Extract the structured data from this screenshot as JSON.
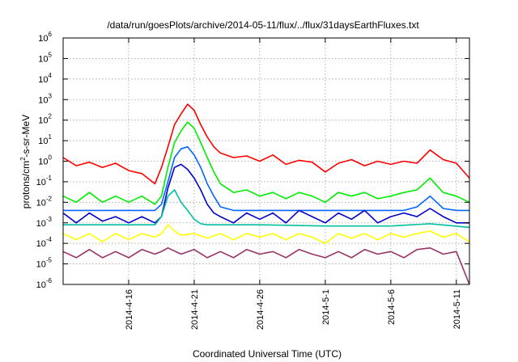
{
  "chart_data": {
    "type": "line",
    "title": "/data/run/goesPlots/archive/2014-05-11/flux/../flux/31daysEarthFluxes.txt",
    "xlabel": "Coordinated Universal Time (UTC)",
    "ylabel": {
      "base": "protons/cm",
      "sup": "2",
      "rest": "-s-sr-MeV"
    },
    "x_range": [
      "2014-04-11",
      "2014-05-12"
    ],
    "x_ticks": [
      "2014-4-16",
      "2014-4-21",
      "2014-4-26",
      "2014-5-1",
      "2014-5-6",
      "2014-5-11"
    ],
    "y_scale": "log",
    "ylim": [
      1e-06,
      1000000.0
    ],
    "y_ticks": [
      {
        "base": "10",
        "exp": "-6"
      },
      {
        "base": "10",
        "exp": "-5"
      },
      {
        "base": "10",
        "exp": "-4"
      },
      {
        "base": "10",
        "exp": "-3"
      },
      {
        "base": "10",
        "exp": "-2"
      },
      {
        "base": "10",
        "exp": "-1"
      },
      {
        "base": "10",
        "exp": "0"
      },
      {
        "base": "10",
        "exp": "1"
      },
      {
        "base": "10",
        "exp": "2"
      },
      {
        "base": "10",
        "exp": "3"
      },
      {
        "base": "10",
        "exp": "4"
      },
      {
        "base": "10",
        "exp": "5"
      },
      {
        "base": "10",
        "exp": "6"
      }
    ],
    "grid": true,
    "legend": "none",
    "series": [
      {
        "color": "#ff0000",
        "points": [
          [
            "2014-04-11",
            1.5
          ],
          [
            "2014-04-12",
            0.6
          ],
          [
            "2014-04-13",
            0.9
          ],
          [
            "2014-04-14",
            0.5
          ],
          [
            "2014-04-15",
            0.8
          ],
          [
            "2014-04-16",
            0.35
          ],
          [
            "2014-04-17",
            0.25
          ],
          [
            "2014-04-18",
            0.08
          ],
          [
            "2014-04-18T12:00",
            0.5
          ],
          [
            "2014-04-19",
            5
          ],
          [
            "2014-04-19T12:00",
            60
          ],
          [
            "2014-04-20",
            200
          ],
          [
            "2014-04-20T12:00",
            600
          ],
          [
            "2014-04-21",
            300
          ],
          [
            "2014-04-21T12:00",
            60
          ],
          [
            "2014-04-22",
            15
          ],
          [
            "2014-04-22T12:00",
            5
          ],
          [
            "2014-04-23",
            2.5
          ],
          [
            "2014-04-24",
            1.5
          ],
          [
            "2014-04-25",
            1.8
          ],
          [
            "2014-04-26",
            1.0
          ],
          [
            "2014-04-27",
            2.0
          ],
          [
            "2014-04-28",
            0.7
          ],
          [
            "2014-04-29",
            1.1
          ],
          [
            "2014-04-30",
            0.9
          ],
          [
            "2014-05-01",
            0.3
          ],
          [
            "2014-05-02",
            0.8
          ],
          [
            "2014-05-03",
            1.2
          ],
          [
            "2014-05-04",
            0.6
          ],
          [
            "2014-05-05",
            1.0
          ],
          [
            "2014-05-06",
            0.7
          ],
          [
            "2014-05-07",
            1.0
          ],
          [
            "2014-05-08",
            0.8
          ],
          [
            "2014-05-09",
            3.5
          ],
          [
            "2014-05-10",
            1.2
          ],
          [
            "2014-05-11",
            0.8
          ],
          [
            "2014-05-12",
            0.15
          ]
        ]
      },
      {
        "color": "#00ee00",
        "points": [
          [
            "2014-04-11",
            0.02
          ],
          [
            "2014-04-12",
            0.01
          ],
          [
            "2014-04-13",
            0.03
          ],
          [
            "2014-04-14",
            0.01
          ],
          [
            "2014-04-15",
            0.02
          ],
          [
            "2014-04-16",
            0.01
          ],
          [
            "2014-04-17",
            0.02
          ],
          [
            "2014-04-18",
            0.008
          ],
          [
            "2014-04-18T12:00",
            0.02
          ],
          [
            "2014-04-19",
            0.5
          ],
          [
            "2014-04-19T12:00",
            8
          ],
          [
            "2014-04-20",
            30
          ],
          [
            "2014-04-20T12:00",
            80
          ],
          [
            "2014-04-21",
            40
          ],
          [
            "2014-04-21T12:00",
            8
          ],
          [
            "2014-04-22",
            1.5
          ],
          [
            "2014-04-22T12:00",
            0.3
          ],
          [
            "2014-04-23",
            0.08
          ],
          [
            "2014-04-24",
            0.03
          ],
          [
            "2014-04-25",
            0.04
          ],
          [
            "2014-04-26",
            0.02
          ],
          [
            "2014-04-27",
            0.03
          ],
          [
            "2014-04-28",
            0.015
          ],
          [
            "2014-04-29",
            0.03
          ],
          [
            "2014-04-30",
            0.02
          ],
          [
            "2014-05-01",
            0.01
          ],
          [
            "2014-05-02",
            0.03
          ],
          [
            "2014-05-03",
            0.02
          ],
          [
            "2014-05-04",
            0.03
          ],
          [
            "2014-05-05",
            0.015
          ],
          [
            "2014-05-06",
            0.02
          ],
          [
            "2014-05-07",
            0.03
          ],
          [
            "2014-05-08",
            0.04
          ],
          [
            "2014-05-09",
            0.15
          ],
          [
            "2014-05-10",
            0.03
          ],
          [
            "2014-05-11",
            0.02
          ],
          [
            "2014-05-12",
            0.01
          ]
        ]
      },
      {
        "color": "#0066ff",
        "points": [
          [
            "2014-04-11",
            0.004
          ],
          [
            "2014-04-14",
            0.004
          ],
          [
            "2014-04-16",
            0.004
          ],
          [
            "2014-04-18",
            0.004
          ],
          [
            "2014-04-18T12:00",
            0.008
          ],
          [
            "2014-04-19",
            0.1
          ],
          [
            "2014-04-19T12:00",
            1.5
          ],
          [
            "2014-04-20",
            4
          ],
          [
            "2014-04-20T12:00",
            5
          ],
          [
            "2014-04-21",
            2
          ],
          [
            "2014-04-21T12:00",
            0.5
          ],
          [
            "2014-04-22",
            0.08
          ],
          [
            "2014-04-22T12:00",
            0.02
          ],
          [
            "2014-04-23",
            0.006
          ],
          [
            "2014-04-24",
            0.004
          ],
          [
            "2014-04-28",
            0.004
          ],
          [
            "2014-05-01",
            0.004
          ],
          [
            "2014-05-04",
            0.004
          ],
          [
            "2014-05-07",
            0.004
          ],
          [
            "2014-05-08",
            0.006
          ],
          [
            "2014-05-09",
            0.02
          ],
          [
            "2014-05-10",
            0.005
          ],
          [
            "2014-05-11",
            0.004
          ],
          [
            "2014-05-12",
            0.004
          ]
        ]
      },
      {
        "color": "#0000cc",
        "points": [
          [
            "2014-04-11",
            0.003
          ],
          [
            "2014-04-12",
            0.001
          ],
          [
            "2014-04-13",
            0.003
          ],
          [
            "2014-04-14",
            0.0012
          ],
          [
            "2014-04-15",
            0.002
          ],
          [
            "2014-04-16",
            0.001
          ],
          [
            "2014-04-17",
            0.002
          ],
          [
            "2014-04-18",
            0.001
          ],
          [
            "2014-04-18T12:00",
            0.002
          ],
          [
            "2014-04-19",
            0.05
          ],
          [
            "2014-04-19T12:00",
            0.5
          ],
          [
            "2014-04-20",
            0.7
          ],
          [
            "2014-04-20T12:00",
            0.4
          ],
          [
            "2014-04-21",
            0.15
          ],
          [
            "2014-04-21T12:00",
            0.04
          ],
          [
            "2014-04-22",
            0.008
          ],
          [
            "2014-04-22T12:00",
            0.003
          ],
          [
            "2014-04-23",
            0.002
          ],
          [
            "2014-04-24",
            0.001
          ],
          [
            "2014-04-25",
            0.003
          ],
          [
            "2014-04-26",
            0.0015
          ],
          [
            "2014-04-27",
            0.003
          ],
          [
            "2014-04-28",
            0.001
          ],
          [
            "2014-04-29",
            0.004
          ],
          [
            "2014-04-30",
            0.002
          ],
          [
            "2014-05-01",
            0.001
          ],
          [
            "2014-05-02",
            0.003
          ],
          [
            "2014-05-03",
            0.0015
          ],
          [
            "2014-05-04",
            0.004
          ],
          [
            "2014-05-05",
            0.001
          ],
          [
            "2014-05-06",
            0.002
          ],
          [
            "2014-05-07",
            0.003
          ],
          [
            "2014-05-08",
            0.002
          ],
          [
            "2014-05-09",
            0.005
          ],
          [
            "2014-05-10",
            0.002
          ],
          [
            "2014-05-11",
            0.001
          ],
          [
            "2014-05-12",
            0.001
          ]
        ]
      },
      {
        "color": "#00c0a0",
        "points": [
          [
            "2014-04-11",
            0.0008
          ],
          [
            "2014-04-14",
            0.0008
          ],
          [
            "2014-04-16",
            0.0008
          ],
          [
            "2014-04-18",
            0.0008
          ],
          [
            "2014-04-18T12:00",
            0.002
          ],
          [
            "2014-04-19",
            0.02
          ],
          [
            "2014-04-19T12:00",
            0.04
          ],
          [
            "2014-04-20",
            0.01
          ],
          [
            "2014-04-20T12:00",
            0.004
          ],
          [
            "2014-04-21",
            0.0015
          ],
          [
            "2014-04-21T12:00",
            0.0009
          ],
          [
            "2014-04-22",
            0.0008
          ],
          [
            "2014-04-26",
            0.0008
          ],
          [
            "2014-05-01",
            0.0007
          ],
          [
            "2014-05-06",
            0.0007
          ],
          [
            "2014-05-09",
            0.0009
          ],
          [
            "2014-05-12",
            0.0006
          ]
        ]
      },
      {
        "color": "#ffff00",
        "points": [
          [
            "2014-04-11",
            0.0003
          ],
          [
            "2014-04-12",
            0.00015
          ],
          [
            "2014-04-13",
            0.0003
          ],
          [
            "2014-04-14",
            0.00012
          ],
          [
            "2014-04-15",
            0.0003
          ],
          [
            "2014-04-16",
            0.00015
          ],
          [
            "2014-04-17",
            0.0003
          ],
          [
            "2014-04-18",
            0.0002
          ],
          [
            "2014-04-18T12:00",
            0.0003
          ],
          [
            "2014-04-19",
            0.0008
          ],
          [
            "2014-04-19T12:00",
            0.0004
          ],
          [
            "2014-04-20",
            0.00025
          ],
          [
            "2014-04-21",
            0.0003
          ],
          [
            "2014-04-22",
            0.00018
          ],
          [
            "2014-04-23",
            0.0003
          ],
          [
            "2014-04-24",
            0.00015
          ],
          [
            "2014-04-25",
            0.0003
          ],
          [
            "2014-04-26",
            0.0002
          ],
          [
            "2014-04-27",
            0.0003
          ],
          [
            "2014-04-28",
            0.00015
          ],
          [
            "2014-04-29",
            0.0003
          ],
          [
            "2014-04-30",
            0.0002
          ],
          [
            "2014-05-01",
            0.0001
          ],
          [
            "2014-05-02",
            0.0003
          ],
          [
            "2014-05-03",
            0.00018
          ],
          [
            "2014-05-04",
            0.0003
          ],
          [
            "2014-05-05",
            0.00015
          ],
          [
            "2014-05-06",
            0.0003
          ],
          [
            "2014-05-07",
            0.0002
          ],
          [
            "2014-05-08",
            0.0003
          ],
          [
            "2014-05-09",
            0.0004
          ],
          [
            "2014-05-10",
            0.0002
          ],
          [
            "2014-05-11",
            0.0003
          ],
          [
            "2014-05-12",
            0.00012
          ]
        ]
      },
      {
        "color": "#993366",
        "points": [
          [
            "2014-04-11",
            4e-05
          ],
          [
            "2014-04-12",
            2e-05
          ],
          [
            "2014-04-13",
            5e-05
          ],
          [
            "2014-04-14",
            2e-05
          ],
          [
            "2014-04-15",
            4e-05
          ],
          [
            "2014-04-16",
            2e-05
          ],
          [
            "2014-04-17",
            5e-05
          ],
          [
            "2014-04-18",
            3e-05
          ],
          [
            "2014-04-18T12:00",
            4e-05
          ],
          [
            "2014-04-19",
            6e-05
          ],
          [
            "2014-04-20",
            3e-05
          ],
          [
            "2014-04-21",
            5e-05
          ],
          [
            "2014-04-22",
            2e-05
          ],
          [
            "2014-04-23",
            4e-05
          ],
          [
            "2014-04-24",
            2e-05
          ],
          [
            "2014-04-25",
            5e-05
          ],
          [
            "2014-04-26",
            3e-05
          ],
          [
            "2014-04-27",
            4e-05
          ],
          [
            "2014-04-28",
            2e-05
          ],
          [
            "2014-04-29",
            5e-05
          ],
          [
            "2014-04-30",
            3e-05
          ],
          [
            "2014-05-01",
            2e-05
          ],
          [
            "2014-05-02",
            4e-05
          ],
          [
            "2014-05-03",
            2e-05
          ],
          [
            "2014-05-04",
            5e-05
          ],
          [
            "2014-05-05",
            3e-05
          ],
          [
            "2014-05-06",
            4e-05
          ],
          [
            "2014-05-07",
            2e-05
          ],
          [
            "2014-05-08",
            5e-05
          ],
          [
            "2014-05-09",
            6e-05
          ],
          [
            "2014-05-10",
            3e-05
          ],
          [
            "2014-05-11",
            4e-05
          ],
          [
            "2014-05-12",
            1e-06
          ]
        ]
      }
    ]
  }
}
